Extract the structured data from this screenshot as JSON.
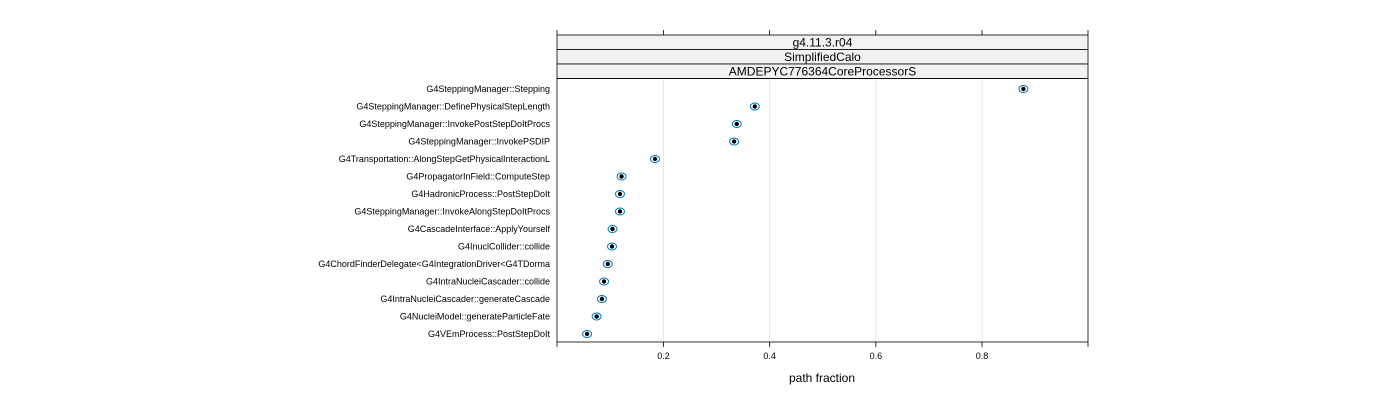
{
  "chart_data": {
    "type": "scatter",
    "strips": [
      "g4.11.3.r04",
      "SimplifiedCalo",
      "AMDEPYC776364CoreProcessorS"
    ],
    "categories": [
      "G4SteppingManager::Stepping",
      "G4SteppingManager::DefinePhysicalStepLength",
      "G4SteppingManager::InvokePostStepDoItProcs",
      "G4SteppingManager::InvokePSDIP",
      "G4Transportation::AlongStepGetPhysicalInteractionL",
      "G4PropagatorInField::ComputeStep",
      "G4HadronicProcess::PostStepDoIt",
      "G4SteppingManager::InvokeAlongStepDoItProcs",
      "G4CascadeInterface::ApplyYourself",
      "G4InuclCollider::collide",
      "G4ChordFinderDelegate<G4IntegrationDriver<G4TDorma",
      "G4IntraNucleiCascader::collide",
      "G4IntraNucleiCascader::generateCascade",
      "G4NucleiModel::generateParticleFate",
      "G4VEmProcess::PostStepDoIt"
    ],
    "values": [
      0.878,
      0.372,
      0.338,
      0.333,
      0.184,
      0.121,
      0.118,
      0.118,
      0.104,
      0.103,
      0.095,
      0.088,
      0.084,
      0.074,
      0.056
    ],
    "xlabel": "path fraction",
    "xlim": [
      0.0,
      1.0
    ],
    "xticks": [
      0.2,
      0.4,
      0.6,
      0.8
    ],
    "xtick_labels": [
      "0.2",
      "0.4",
      "0.6",
      "0.8"
    ],
    "grid": true,
    "colors": {
      "marker": "#0072b2",
      "point": "#000000",
      "strip": "#f2f2f2"
    }
  }
}
